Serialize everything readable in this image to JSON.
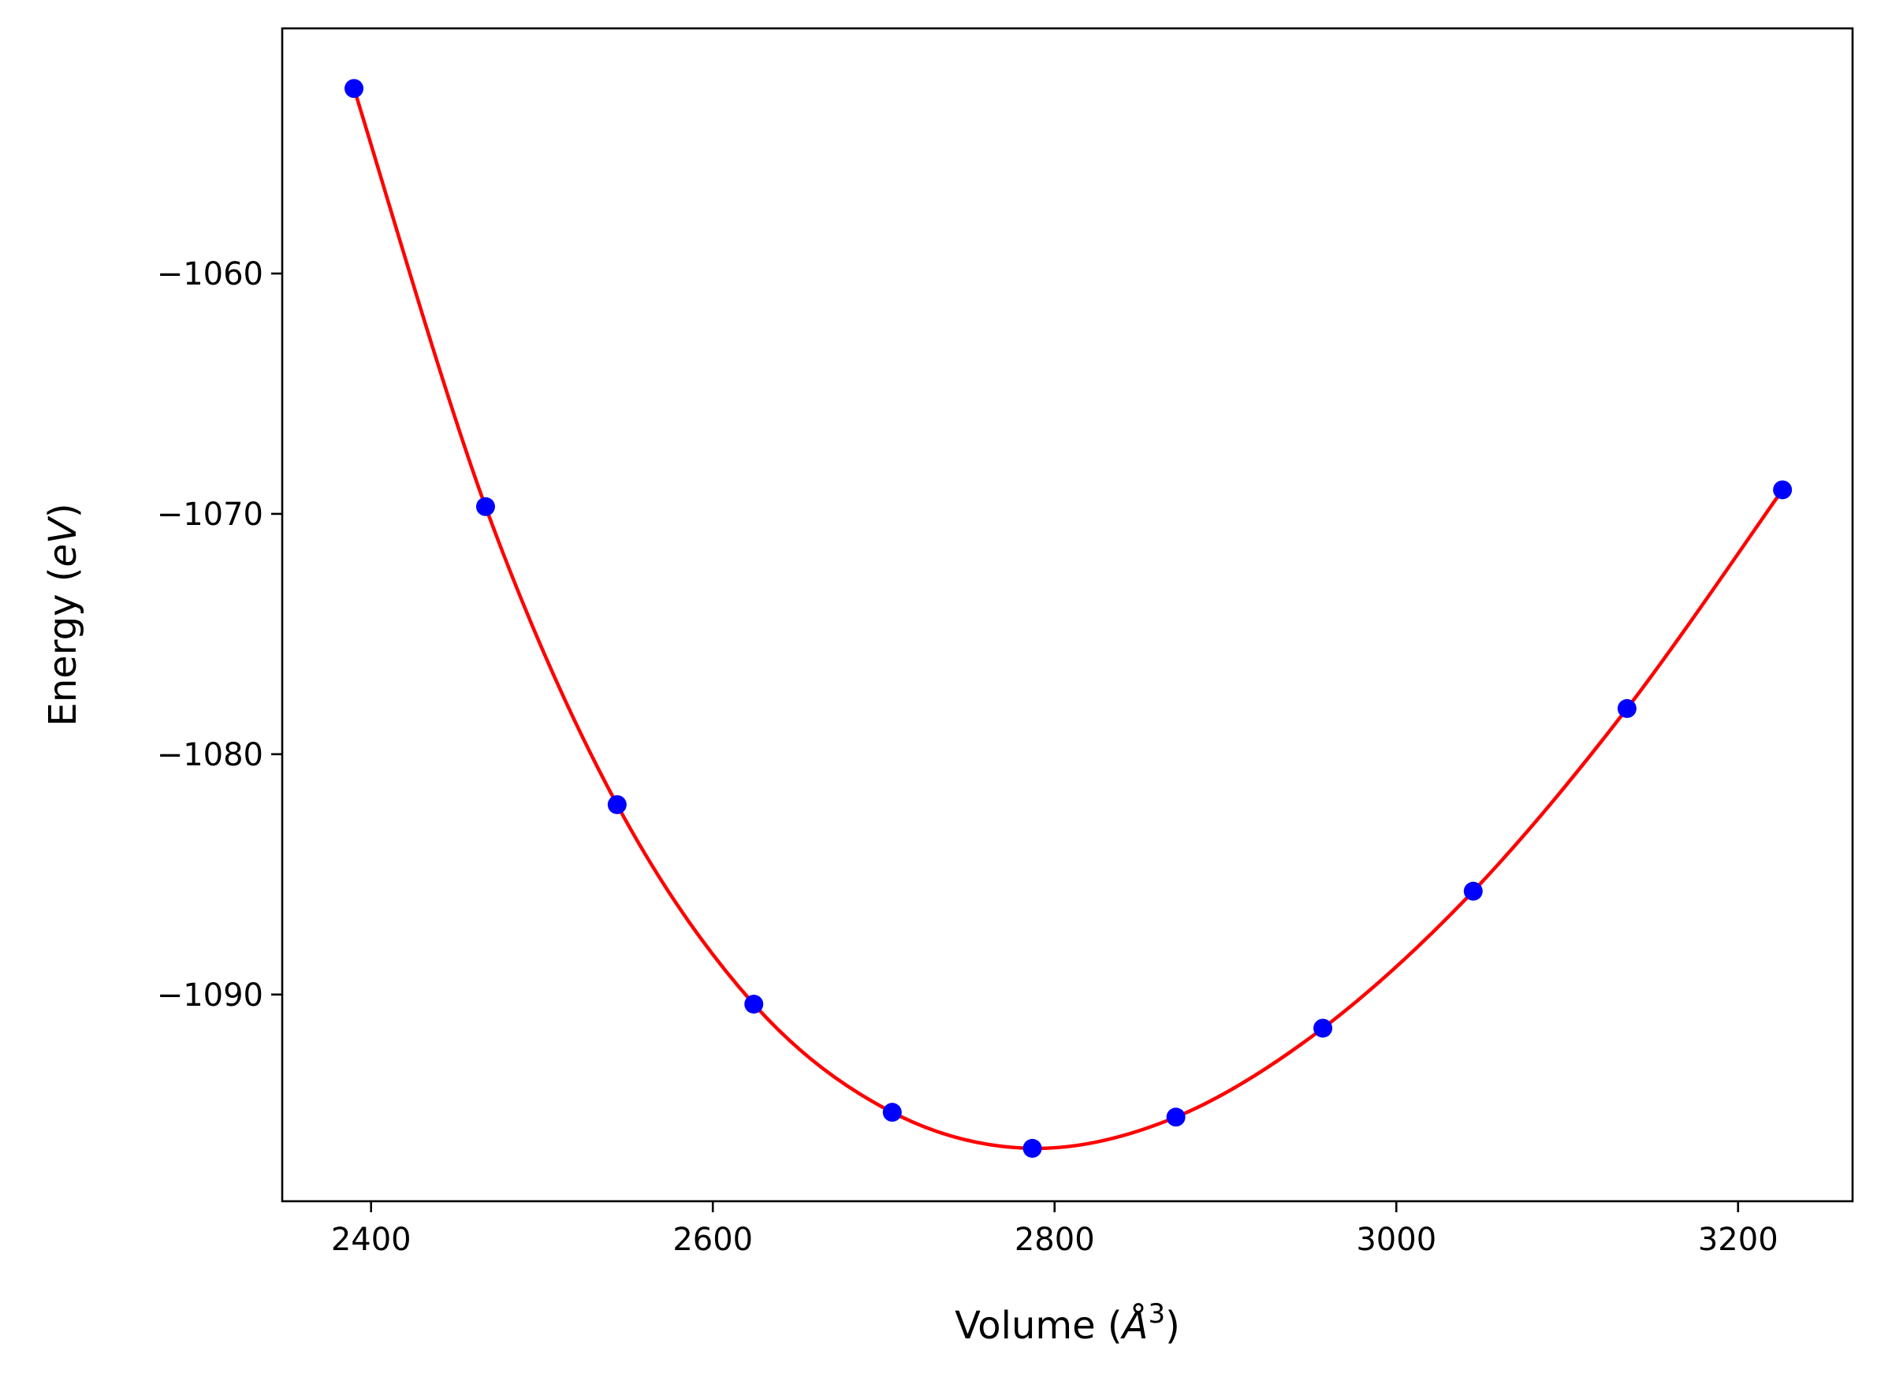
{
  "chart_data": {
    "type": "scatter",
    "xlabel": "Volume (Å³)",
    "xlabel_main": "Volume (",
    "xlabel_unit": "Å",
    "xlabel_power": "3",
    "xlabel_close": ")",
    "ylabel": "Energy (eV)",
    "ylabel_main": "Energy (",
    "ylabel_unit": "eV",
    "ylabel_close": ")",
    "xlim": [
      2348,
      3267
    ],
    "ylim": [
      -1098.6,
      -1049.8
    ],
    "xticks": [
      2400,
      2600,
      2800,
      3000,
      3200
    ],
    "xtick_labels": [
      "2400",
      "2600",
      "2800",
      "3000",
      "3200"
    ],
    "yticks": [
      -1060,
      -1070,
      -1080,
      -1090
    ],
    "ytick_labels": [
      "−1060",
      "−1070",
      "−1080",
      "−1090"
    ],
    "grid": false,
    "series": [
      {
        "kind": "points",
        "color": "#0000ff",
        "x": [
          2390,
          2467,
          2544,
          2624,
          2705,
          2787,
          2871,
          2957,
          3045,
          3135,
          3226
        ],
        "y": [
          -1052.3,
          -1069.7,
          -1082.1,
          -1090.4,
          -1094.9,
          -1096.4,
          -1095.1,
          -1091.4,
          -1085.7,
          -1078.1,
          -1069.0
        ]
      },
      {
        "kind": "fit-line",
        "color": "#ff0000",
        "x": [
          2390,
          2467,
          2544,
          2624,
          2705,
          2787,
          2871,
          2957,
          3045,
          3135,
          3226
        ],
        "y": [
          -1052.3,
          -1069.7,
          -1082.1,
          -1090.4,
          -1094.9,
          -1096.4,
          -1095.1,
          -1091.4,
          -1085.7,
          -1078.1,
          -1069.0
        ]
      }
    ]
  }
}
